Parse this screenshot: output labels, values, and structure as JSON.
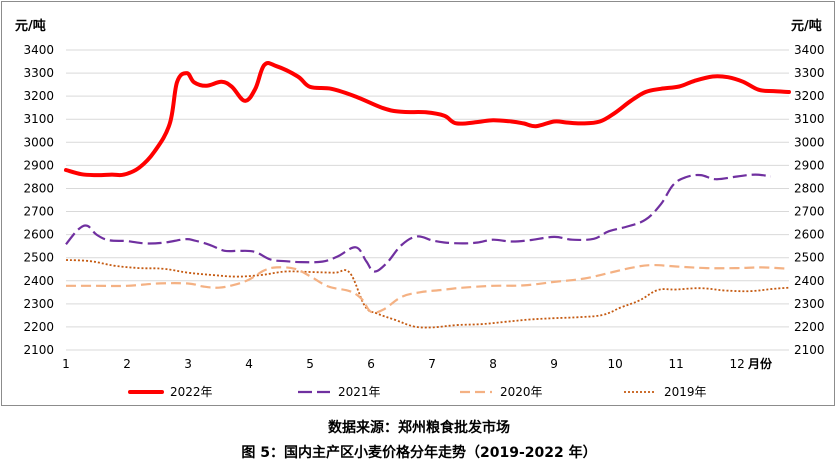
{
  "chart_data": {
    "type": "line",
    "y_unit_left": "元/吨",
    "y_unit_right": "元/吨",
    "x_unit": "月份",
    "x_ticks": [
      "1",
      "2",
      "3",
      "4",
      "5",
      "6",
      "7",
      "8",
      "9",
      "10",
      "11",
      "12"
    ],
    "y_ticks": [
      2100,
      2200,
      2300,
      2400,
      2500,
      2600,
      2700,
      2800,
      2900,
      3000,
      3100,
      3200,
      3300,
      3400
    ],
    "ylim": [
      2100,
      3400
    ],
    "xlim": [
      1,
      12.5
    ],
    "grid": "horizontal",
    "legend_position": "bottom",
    "series": [
      {
        "name": "2022年",
        "color": "#ff0000",
        "style": "solid-thick",
        "points": [
          [
            1,
            2880
          ],
          [
            1.25,
            2862
          ],
          [
            1.5,
            2858
          ],
          [
            1.75,
            2860
          ],
          [
            1.95,
            2860
          ],
          [
            2.2,
            2890
          ],
          [
            2.45,
            2960
          ],
          [
            2.7,
            3080
          ],
          [
            2.82,
            3260
          ],
          [
            2.98,
            3300
          ],
          [
            3.1,
            3260
          ],
          [
            3.3,
            3245
          ],
          [
            3.55,
            3262
          ],
          [
            3.72,
            3240
          ],
          [
            3.93,
            3180
          ],
          [
            4.1,
            3230
          ],
          [
            4.25,
            3335
          ],
          [
            4.45,
            3330
          ],
          [
            4.8,
            3285
          ],
          [
            5.0,
            3240
          ],
          [
            5.35,
            3232
          ],
          [
            5.75,
            3198
          ],
          [
            6.2,
            3148
          ],
          [
            6.5,
            3132
          ],
          [
            6.9,
            3130
          ],
          [
            7.2,
            3115
          ],
          [
            7.4,
            3082
          ],
          [
            7.75,
            3088
          ],
          [
            8.0,
            3096
          ],
          [
            8.3,
            3090
          ],
          [
            8.5,
            3082
          ],
          [
            8.7,
            3070
          ],
          [
            9.0,
            3090
          ],
          [
            9.2,
            3086
          ],
          [
            9.45,
            3082
          ],
          [
            9.75,
            3090
          ],
          [
            10.0,
            3128
          ],
          [
            10.25,
            3178
          ],
          [
            10.5,
            3218
          ],
          [
            10.75,
            3232
          ],
          [
            11.05,
            3242
          ],
          [
            11.3,
            3266
          ],
          [
            11.6,
            3285
          ],
          [
            11.85,
            3282
          ],
          [
            12.1,
            3262
          ],
          [
            12.35,
            3228
          ],
          [
            12.6,
            3222
          ],
          [
            12.85,
            3218
          ]
        ]
      },
      {
        "name": "2021年",
        "color": "#7030a0",
        "style": "long-dash",
        "points": [
          [
            1,
            2558
          ],
          [
            1.2,
            2622
          ],
          [
            1.35,
            2638
          ],
          [
            1.5,
            2600
          ],
          [
            1.7,
            2576
          ],
          [
            2.0,
            2572
          ],
          [
            2.3,
            2562
          ],
          [
            2.6,
            2565
          ],
          [
            2.95,
            2580
          ],
          [
            3.1,
            2575
          ],
          [
            3.35,
            2556
          ],
          [
            3.6,
            2530
          ],
          [
            3.85,
            2530
          ],
          [
            4.1,
            2525
          ],
          [
            4.35,
            2492
          ],
          [
            4.6,
            2485
          ],
          [
            4.85,
            2481
          ],
          [
            5.2,
            2483
          ],
          [
            5.45,
            2505
          ],
          [
            5.75,
            2545
          ],
          [
            5.92,
            2485
          ],
          [
            6.05,
            2440
          ],
          [
            6.25,
            2475
          ],
          [
            6.5,
            2555
          ],
          [
            6.75,
            2592
          ],
          [
            7.0,
            2575
          ],
          [
            7.2,
            2566
          ],
          [
            7.5,
            2562
          ],
          [
            7.75,
            2566
          ],
          [
            8.0,
            2578
          ],
          [
            8.3,
            2570
          ],
          [
            8.6,
            2576
          ],
          [
            9.0,
            2590
          ],
          [
            9.3,
            2578
          ],
          [
            9.65,
            2582
          ],
          [
            9.9,
            2615
          ],
          [
            10.2,
            2635
          ],
          [
            10.5,
            2665
          ],
          [
            10.75,
            2732
          ],
          [
            10.95,
            2815
          ],
          [
            11.15,
            2848
          ],
          [
            11.4,
            2858
          ],
          [
            11.65,
            2840
          ],
          [
            12.0,
            2852
          ],
          [
            12.3,
            2860
          ],
          [
            12.55,
            2852
          ]
        ]
      },
      {
        "name": "2020年",
        "color": "#f4b183",
        "style": "dash",
        "points": [
          [
            1,
            2378
          ],
          [
            1.5,
            2378
          ],
          [
            2.0,
            2378
          ],
          [
            2.5,
            2388
          ],
          [
            3.0,
            2388
          ],
          [
            3.25,
            2375
          ],
          [
            3.5,
            2370
          ],
          [
            3.75,
            2382
          ],
          [
            4.0,
            2405
          ],
          [
            4.25,
            2445
          ],
          [
            4.45,
            2458
          ],
          [
            4.75,
            2452
          ],
          [
            5.0,
            2420
          ],
          [
            5.3,
            2375
          ],
          [
            5.65,
            2355
          ],
          [
            5.85,
            2320
          ],
          [
            6.0,
            2265
          ],
          [
            6.2,
            2275
          ],
          [
            6.5,
            2330
          ],
          [
            6.8,
            2350
          ],
          [
            7.15,
            2360
          ],
          [
            7.5,
            2370
          ],
          [
            8.0,
            2378
          ],
          [
            8.5,
            2380
          ],
          [
            9.0,
            2395
          ],
          [
            9.5,
            2410
          ],
          [
            10.0,
            2440
          ],
          [
            10.3,
            2458
          ],
          [
            10.6,
            2468
          ],
          [
            11.0,
            2462
          ],
          [
            11.5,
            2455
          ],
          [
            12.0,
            2455
          ],
          [
            12.4,
            2458
          ],
          [
            12.85,
            2452
          ]
        ]
      },
      {
        "name": "2019年",
        "color": "#c55a11",
        "style": "dot",
        "points": [
          [
            1,
            2490
          ],
          [
            1.4,
            2485
          ],
          [
            1.8,
            2465
          ],
          [
            2.2,
            2455
          ],
          [
            2.6,
            2452
          ],
          [
            3.0,
            2435
          ],
          [
            3.4,
            2425
          ],
          [
            3.8,
            2418
          ],
          [
            4.2,
            2425
          ],
          [
            4.6,
            2440
          ],
          [
            5.0,
            2438
          ],
          [
            5.4,
            2435
          ],
          [
            5.65,
            2435
          ],
          [
            5.9,
            2290
          ],
          [
            6.1,
            2258
          ],
          [
            6.4,
            2230
          ],
          [
            6.7,
            2202
          ],
          [
            7.0,
            2198
          ],
          [
            7.4,
            2208
          ],
          [
            7.8,
            2212
          ],
          [
            8.2,
            2222
          ],
          [
            8.6,
            2232
          ],
          [
            9.0,
            2238
          ],
          [
            9.4,
            2242
          ],
          [
            9.8,
            2252
          ],
          [
            10.1,
            2285
          ],
          [
            10.4,
            2315
          ],
          [
            10.7,
            2360
          ],
          [
            11.0,
            2362
          ],
          [
            11.4,
            2368
          ],
          [
            11.8,
            2358
          ],
          [
            12.2,
            2355
          ],
          [
            12.6,
            2365
          ],
          [
            12.85,
            2370
          ]
        ]
      }
    ]
  },
  "captions": {
    "source": "数据来源：郑州粮食批发市场",
    "title": "图 5：国内主产区小麦价格分年走势（2019-2022 年）"
  }
}
